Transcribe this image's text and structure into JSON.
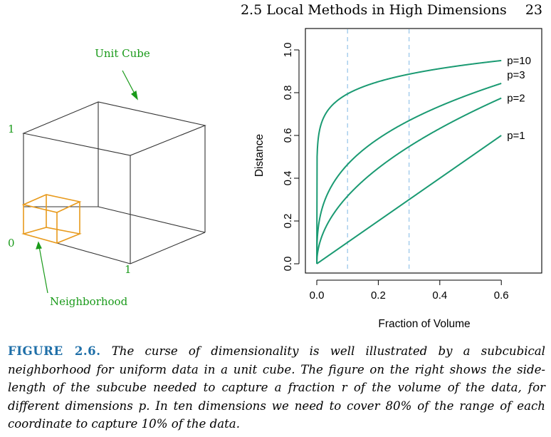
{
  "header": {
    "section": "2.5 Local Methods in High Dimensions",
    "page_number": "23"
  },
  "left_figure": {
    "cube_label": "Unit Cube",
    "neighborhood_label": "Neighborhood",
    "axis_label_top": "1",
    "axis_label_origin": "0",
    "axis_label_right": "1",
    "cube_color": "#333333",
    "neighborhood_color": "#e89a1c",
    "label_color": "#1a9a1a"
  },
  "chart_data": {
    "type": "line",
    "xlabel": "Fraction of Volume",
    "ylabel": "Distance",
    "xlim": [
      -0.04,
      0.7
    ],
    "ylim": [
      0.0,
      1.0
    ],
    "xticks": [
      "0.0",
      "0.2",
      "0.4",
      "0.6"
    ],
    "xtick_values": [
      0.0,
      0.2,
      0.4,
      0.6
    ],
    "yticks": [
      "0.0",
      "0.2",
      "0.4",
      "0.6",
      "0.8",
      "1.0"
    ],
    "ytick_values": [
      0.0,
      0.2,
      0.4,
      0.6,
      0.8,
      1.0
    ],
    "vlines": [
      0.1,
      0.3
    ],
    "vline_color": "#9cc8ea",
    "line_color": "#1a9a72",
    "series": [
      {
        "name": "p=1",
        "p": 1
      },
      {
        "name": "p=2",
        "p": 2
      },
      {
        "name": "p=3",
        "p": 3
      },
      {
        "name": "p=10",
        "p": 10
      }
    ]
  },
  "caption": {
    "label": "FIGURE 2.6.",
    "text": "The curse of dimensionality is well illustrated by a subcubical neighborhood for uniform data in a unit cube. The figure on the right shows the side-length of the subcube needed to capture a fraction r of the volume of the data, for different dimensions p. In ten dimensions we need to cover 80% of the range of each coordinate to capture 10% of the data."
  }
}
